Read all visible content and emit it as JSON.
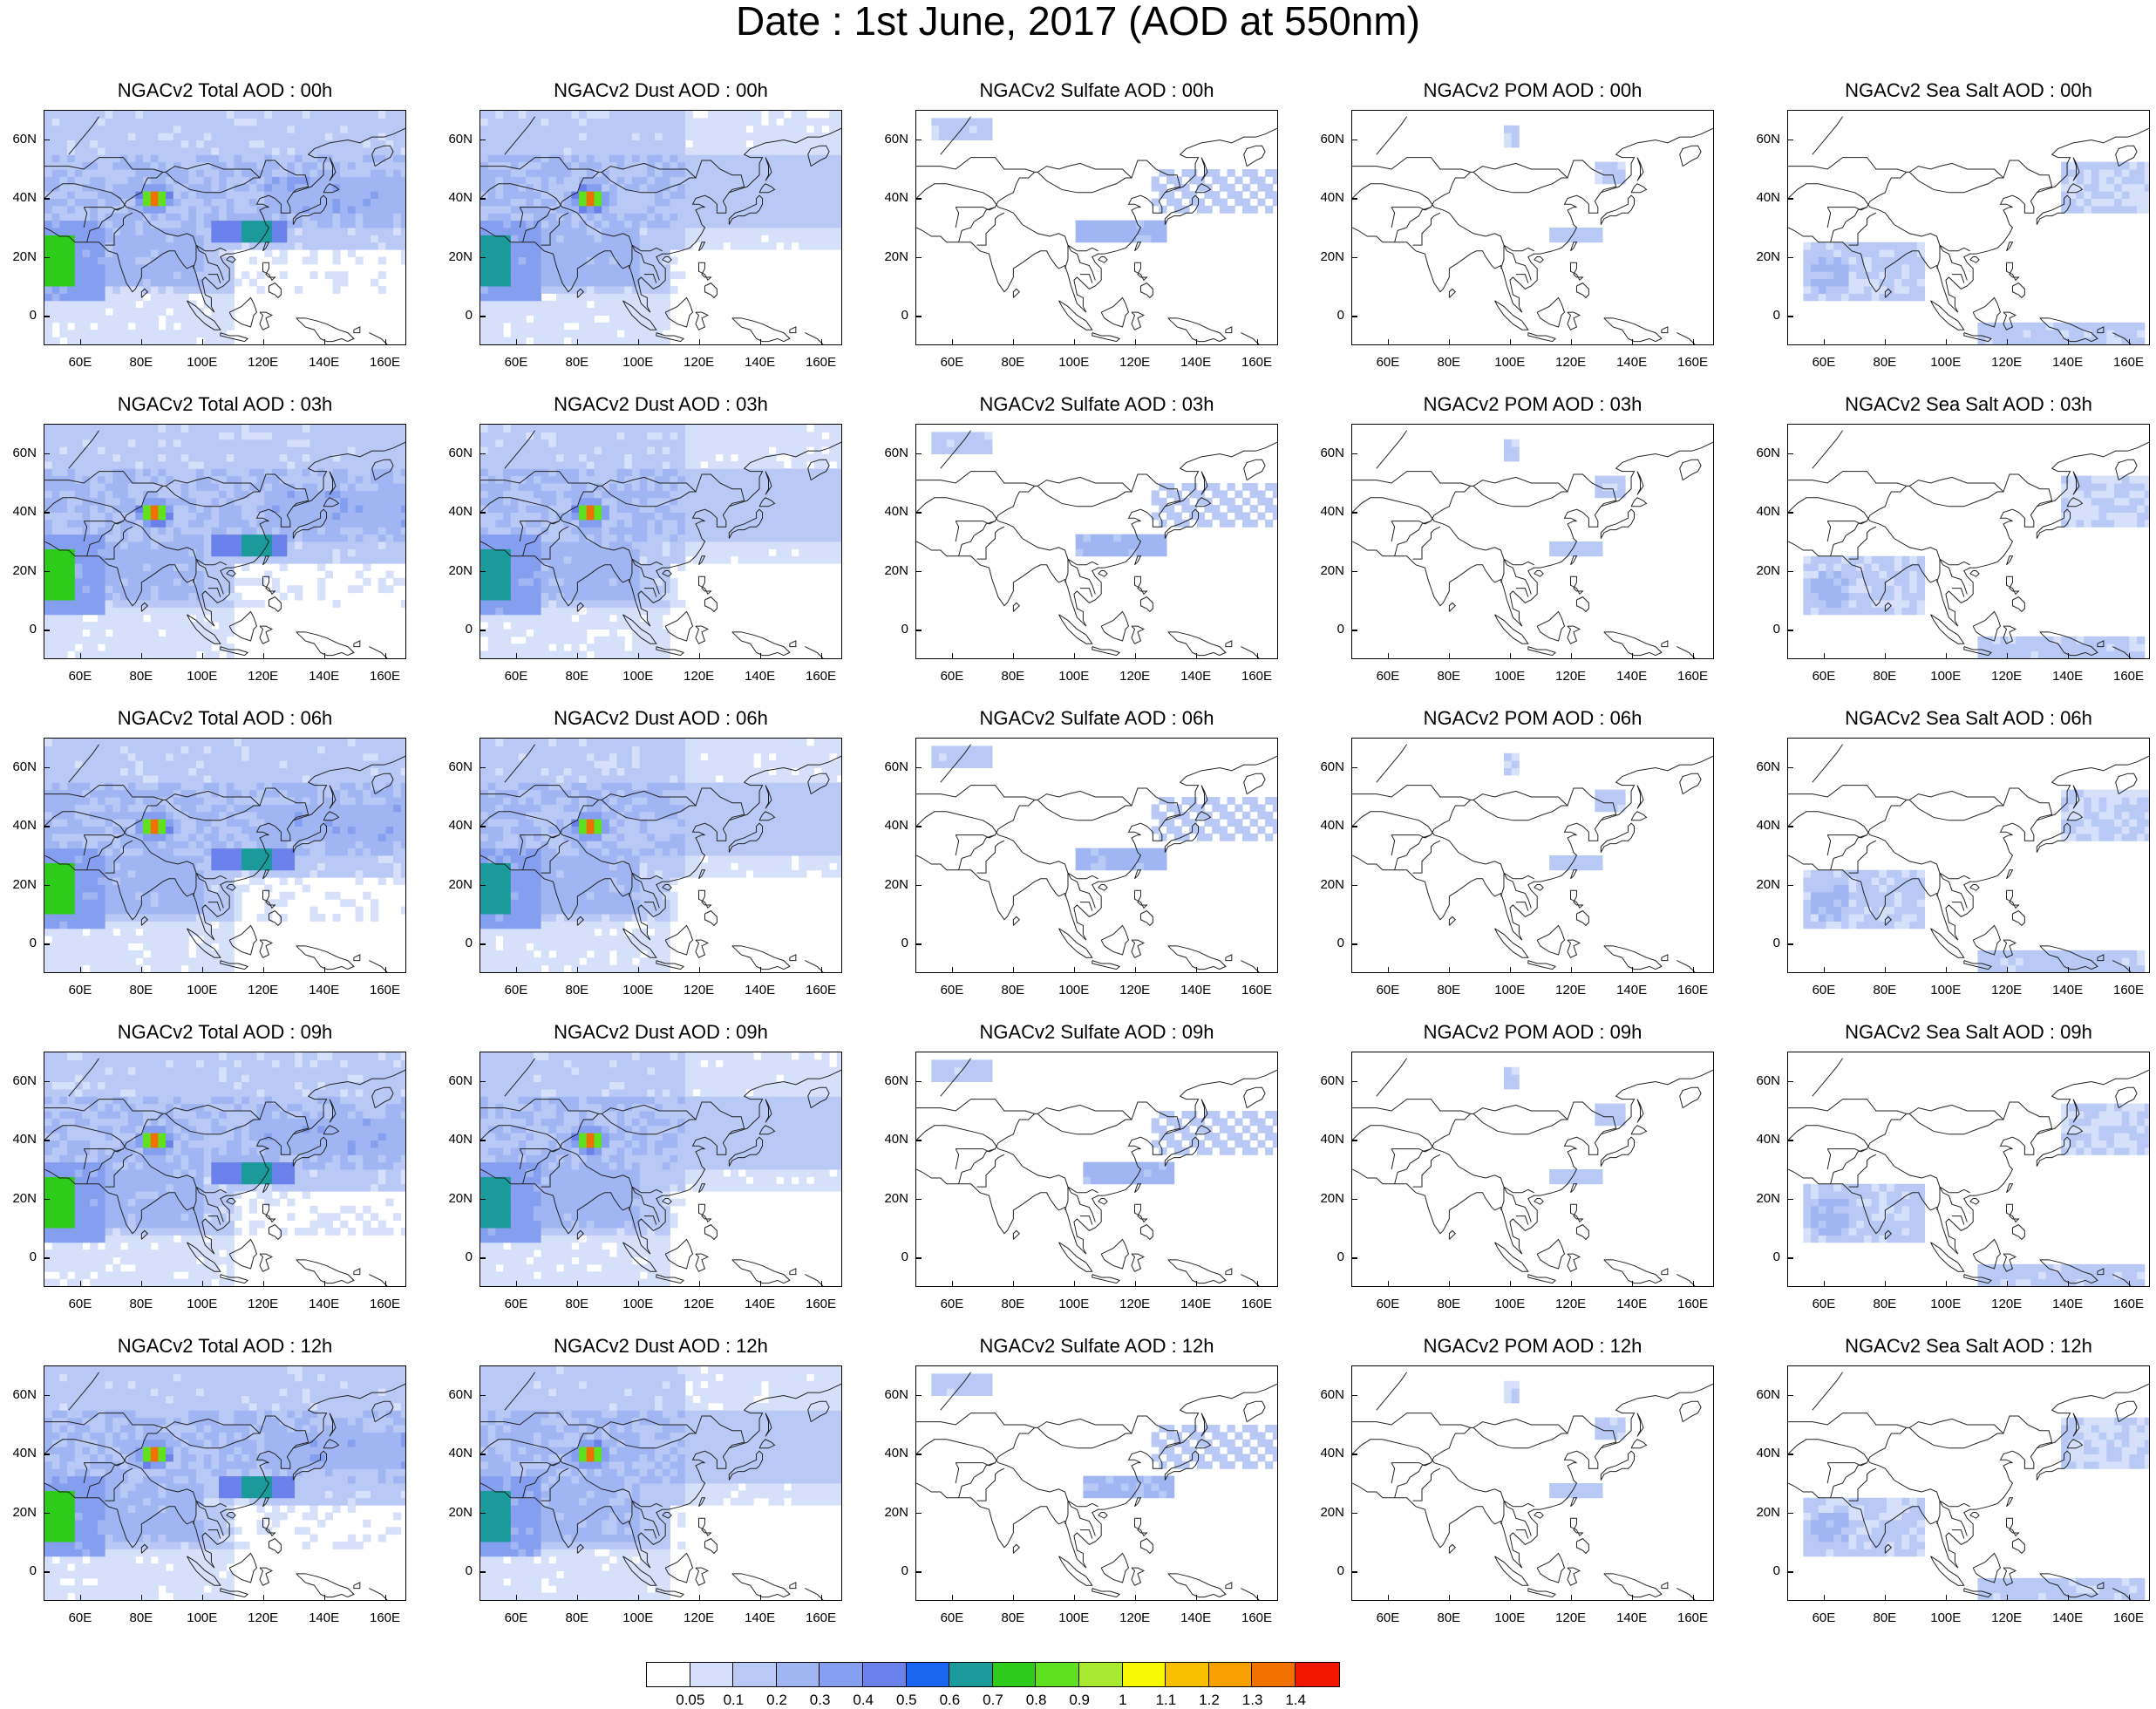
{
  "title": "Date : 1st June, 2017 (AOD at 550nm)",
  "map_axes": {
    "lat_labels": [
      "60N",
      "40N",
      "20N",
      "0"
    ],
    "lat_values": [
      60,
      40,
      20,
      0
    ],
    "lat_range": [
      -10,
      70
    ],
    "lon_labels": [
      "60E",
      "80E",
      "100E",
      "120E",
      "140E",
      "160E"
    ],
    "lon_values": [
      60,
      80,
      100,
      120,
      140,
      160
    ],
    "lon_range": [
      48,
      167
    ]
  },
  "panels": [
    [
      "NGACv2 Total AOD : 00h",
      "NGACv2 Dust AOD : 00h",
      "NGACv2 Sulfate AOD : 00h",
      "NGACv2 POM AOD : 00h",
      "NGACv2 Sea Salt AOD : 00h"
    ],
    [
      "NGACv2 Total AOD : 03h",
      "NGACv2 Dust AOD : 03h",
      "NGACv2 Sulfate AOD : 03h",
      "NGACv2 POM AOD : 03h",
      "NGACv2 Sea Salt AOD : 03h"
    ],
    [
      "NGACv2 Total AOD : 06h",
      "NGACv2 Dust AOD : 06h",
      "NGACv2 Sulfate AOD : 06h",
      "NGACv2 POM AOD : 06h",
      "NGACv2 Sea Salt AOD : 06h"
    ],
    [
      "NGACv2 Total AOD : 09h",
      "NGACv2 Dust AOD : 09h",
      "NGACv2 Sulfate AOD : 09h",
      "NGACv2 POM AOD : 09h",
      "NGACv2 Sea Salt  AOD : 09h"
    ],
    [
      "NGACv2 Total AOD  : 12h",
      "NGACv2 Dust AOD : 12h",
      "NGACv2 Sulfate AOD : 12h",
      "NGACv2 POM  AOD : 12h",
      "NGACv2 Sea Salt  AOD : 12h"
    ]
  ],
  "panel_types": [
    "total",
    "dust",
    "sulfate",
    "pom",
    "seasalt"
  ],
  "colorbar": {
    "labels": [
      "0.05",
      "0.1",
      "0.2",
      "0.3",
      "0.4",
      "0.5",
      "0.6",
      "0.7",
      "0.8",
      "0.9",
      "1",
      "1.1",
      "1.2",
      "1.3",
      "1.4"
    ],
    "colors": [
      "#ffffff",
      "#d6e0fb",
      "#b9c9f6",
      "#a0b6f2",
      "#859ff0",
      "#6a80ea",
      "#1a66f0",
      "#1a9a9a",
      "#2ecc1a",
      "#5fe020",
      "#a8ea30",
      "#f8f800",
      "#f8c000",
      "#f8a000",
      "#f07000",
      "#f01800"
    ]
  }
}
